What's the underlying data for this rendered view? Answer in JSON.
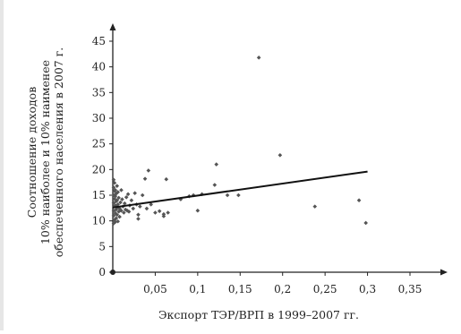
{
  "chart_data": {
    "type": "scatter",
    "title": "",
    "xlabel": "Экспорт ТЭР/ВРП в 1999–2007 гг.",
    "ylabel_lines": [
      "Соотношение доходов",
      "10% наиболее и 10% наименее",
      "обеспеченного населения в 2007 г."
    ],
    "xlim": [
      0,
      0.35
    ],
    "ylim": [
      0,
      45
    ],
    "x_ticks": [
      0.05,
      0.1,
      0.15,
      0.2,
      0.25,
      0.3,
      0.35
    ],
    "x_tick_labels": [
      "0,05",
      "0,1",
      "0,15",
      "0,2",
      "0,25",
      "0,3",
      "0,35"
    ],
    "y_ticks": [
      0,
      5,
      10,
      15,
      20,
      25,
      30,
      35,
      40,
      45
    ],
    "y_tick_labels": [
      "0",
      "5",
      "10",
      "15",
      "20",
      "25",
      "30",
      "35",
      "40",
      "45"
    ],
    "grid": false,
    "point_color": "#555555",
    "trendline": {
      "x": [
        0,
        0.3
      ],
      "y": [
        12.6,
        19.6
      ],
      "color": "#111111"
    },
    "points": [
      [
        0.001,
        9.5
      ],
      [
        0.001,
        11.0
      ],
      [
        0.001,
        12.0
      ],
      [
        0.001,
        13.5
      ],
      [
        0.001,
        15.0
      ],
      [
        0.001,
        16.5
      ],
      [
        0.001,
        18.0
      ],
      [
        0.002,
        10.2
      ],
      [
        0.002,
        12.8
      ],
      [
        0.002,
        14.3
      ],
      [
        0.002,
        15.8
      ],
      [
        0.002,
        17.4
      ],
      [
        0.003,
        9.8
      ],
      [
        0.003,
        11.5
      ],
      [
        0.003,
        13.0
      ],
      [
        0.003,
        14.8
      ],
      [
        0.003,
        16.0
      ],
      [
        0.004,
        10.5
      ],
      [
        0.004,
        12.2
      ],
      [
        0.004,
        13.8
      ],
      [
        0.004,
        15.3
      ],
      [
        0.005,
        11.2
      ],
      [
        0.005,
        12.6
      ],
      [
        0.005,
        14.0
      ],
      [
        0.005,
        16.8
      ],
      [
        0.006,
        9.9
      ],
      [
        0.006,
        13.2
      ],
      [
        0.006,
        15.6
      ],
      [
        0.007,
        11.8
      ],
      [
        0.007,
        14.5
      ],
      [
        0.008,
        12.4
      ],
      [
        0.008,
        10.8
      ],
      [
        0.009,
        13.6
      ],
      [
        0.01,
        12.0
      ],
      [
        0.01,
        16.0
      ],
      [
        0.011,
        14.2
      ],
      [
        0.012,
        12.8
      ],
      [
        0.013,
        11.6
      ],
      [
        0.014,
        13.4
      ],
      [
        0.015,
        12.2
      ],
      [
        0.016,
        14.6
      ],
      [
        0.017,
        12.0
      ],
      [
        0.018,
        15.2
      ],
      [
        0.019,
        11.8
      ],
      [
        0.02,
        13.0
      ],
      [
        0.022,
        14.0
      ],
      [
        0.024,
        12.4
      ],
      [
        0.026,
        15.4
      ],
      [
        0.028,
        13.2
      ],
      [
        0.03,
        11.2
      ],
      [
        0.03,
        10.4
      ],
      [
        0.032,
        12.8
      ],
      [
        0.035,
        15.0
      ],
      [
        0.038,
        18.2
      ],
      [
        0.04,
        12.4
      ],
      [
        0.042,
        19.8
      ],
      [
        0.045,
        13.2
      ],
      [
        0.05,
        11.6
      ],
      [
        0.055,
        11.9
      ],
      [
        0.06,
        11.3
      ],
      [
        0.06,
        10.9
      ],
      [
        0.063,
        18.1
      ],
      [
        0.065,
        11.6
      ],
      [
        0.08,
        14.2
      ],
      [
        0.09,
        14.8
      ],
      [
        0.095,
        15.0
      ],
      [
        0.1,
        12.0
      ],
      [
        0.105,
        15.2
      ],
      [
        0.12,
        17.0
      ],
      [
        0.122,
        21.0
      ],
      [
        0.135,
        15.0
      ],
      [
        0.148,
        15.0
      ],
      [
        0.172,
        41.8
      ],
      [
        0.197,
        22.8
      ],
      [
        0.238,
        12.8
      ],
      [
        0.29,
        14.0
      ],
      [
        0.298,
        9.6
      ]
    ]
  }
}
